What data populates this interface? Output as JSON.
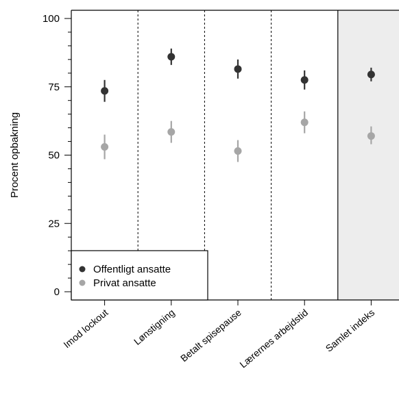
{
  "chart_data": {
    "type": "scatter",
    "ylabel": "Procent opbakning",
    "xlabel": "",
    "title": "",
    "ylim": [
      0,
      100
    ],
    "yticks": [
      0,
      25,
      50,
      75,
      100
    ],
    "categories": [
      "Imod lockout",
      "Lønstigning",
      "Betalt spisepause",
      "Lærernes arbejdstid",
      "Samlet indeks"
    ],
    "highlighted_category": "Samlet indeks",
    "highlight_color": "#ededed",
    "grid": false,
    "legend_position": "bottom-left",
    "series": [
      {
        "name": "Offentligt ansatte",
        "color": "#333333",
        "values": [
          73.5,
          86,
          81.5,
          77.5,
          79.5
        ],
        "ci_low": [
          69.5,
          83,
          78,
          74,
          77
        ],
        "ci_high": [
          77.5,
          89,
          85,
          81,
          82
        ]
      },
      {
        "name": "Privat ansatte",
        "color": "#a6a6a6",
        "values": [
          53,
          58.5,
          51.5,
          62,
          57
        ],
        "ci_low": [
          48.5,
          54.5,
          47.5,
          58,
          54
        ],
        "ci_high": [
          57.5,
          62.5,
          55.5,
          66,
          60.5
        ]
      }
    ]
  }
}
